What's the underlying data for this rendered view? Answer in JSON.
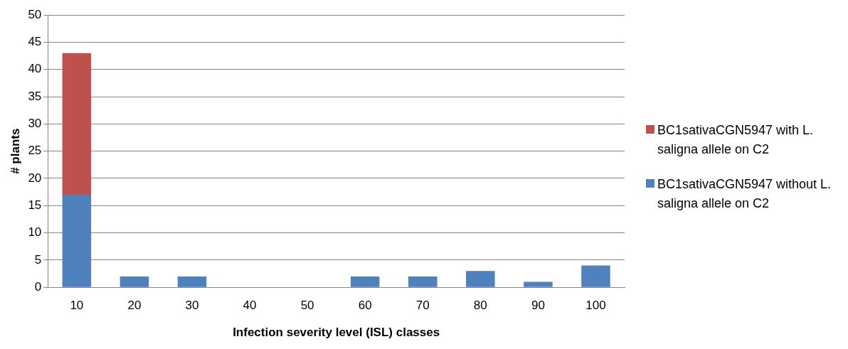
{
  "chart_data": {
    "type": "bar",
    "stacked": true,
    "xlabel": "Infection severity level (ISL) classes",
    "ylabel": "# plants",
    "categories": [
      "10",
      "20",
      "30",
      "40",
      "50",
      "60",
      "70",
      "80",
      "90",
      "100"
    ],
    "series": [
      {
        "name": "BC1sativaCGN5947 without L. saligna allele on C2",
        "color": "#4f81bd",
        "values": [
          17,
          2,
          2,
          0,
          0,
          2,
          2,
          3,
          1,
          4
        ]
      },
      {
        "name": "BC1sativaCGN5947 with L. saligna allele on C2",
        "color": "#c0504d",
        "values": [
          26,
          0,
          0,
          0,
          0,
          0,
          0,
          0,
          0,
          0
        ]
      }
    ],
    "ylim": [
      0,
      50
    ],
    "yticks": [
      0,
      5,
      10,
      15,
      20,
      25,
      30,
      35,
      40,
      45,
      50
    ],
    "grid": "y",
    "legend": "right"
  }
}
